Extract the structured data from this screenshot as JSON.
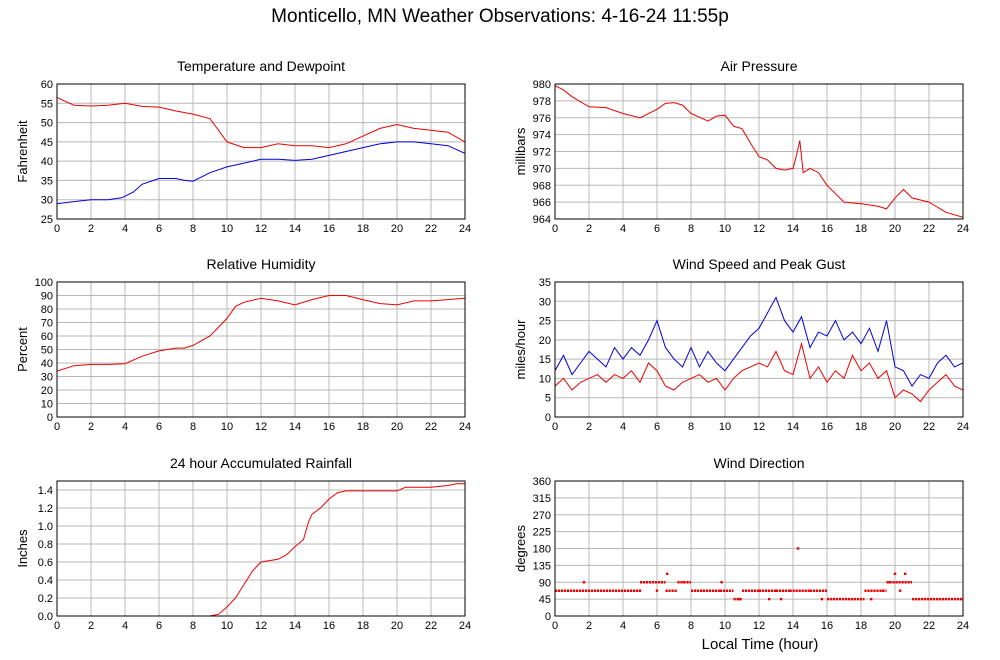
{
  "title": "Monticello, MN Weather Observations: 4-16-24 11:55p",
  "shared_xlabel": "Local Time (hour)",
  "chart_data": [
    {
      "id": "temp",
      "type": "line",
      "title": "Temperature and Dewpoint",
      "ylabel": "Fahrenheit",
      "xlim": [
        0,
        24
      ],
      "ylim": [
        25,
        60
      ],
      "yticks": [
        25,
        30,
        35,
        40,
        45,
        50,
        55,
        60
      ],
      "grid": true,
      "series": [
        {
          "color": "#ee0000",
          "x": [
            0,
            0.5,
            1,
            2,
            3,
            4,
            5,
            6,
            7,
            8,
            9,
            10,
            11,
            12,
            13,
            14,
            15,
            16,
            17,
            18,
            19,
            20,
            21,
            22,
            23,
            24
          ],
          "y": [
            56.5,
            55.5,
            54.5,
            54.3,
            54.5,
            55,
            54.2,
            54,
            53,
            52.2,
            51,
            45,
            43.5,
            43.5,
            44.5,
            44,
            44,
            43.5,
            44.5,
            46.5,
            48.5,
            49.5,
            48.5,
            48,
            47.5,
            45
          ]
        },
        {
          "color": "#0000dd",
          "x": [
            0,
            1,
            2,
            3,
            3.8,
            4.5,
            5,
            6,
            7,
            7.5,
            8,
            9,
            10,
            11,
            12,
            13,
            14,
            15,
            16,
            17,
            18,
            19,
            20,
            21,
            22,
            23,
            24
          ],
          "y": [
            29,
            29.5,
            30,
            30,
            30.5,
            32,
            34,
            35.5,
            35.5,
            35,
            34.8,
            37,
            38.5,
            39.5,
            40.5,
            40.5,
            40.2,
            40.5,
            41.5,
            42.5,
            43.5,
            44.5,
            45,
            45,
            44.5,
            44,
            42
          ]
        }
      ]
    },
    {
      "id": "pressure",
      "type": "line",
      "title": "Air Pressure",
      "ylabel": "millibars",
      "xlim": [
        0,
        24
      ],
      "ylim": [
        964,
        980
      ],
      "yticks": [
        964,
        966,
        968,
        970,
        972,
        974,
        976,
        978,
        980
      ],
      "grid": true,
      "series": [
        {
          "color": "#ee0000",
          "x": [
            0,
            0.5,
            1,
            2,
            3,
            4,
            5,
            6,
            6.5,
            7,
            7.5,
            8,
            9,
            9.5,
            10,
            10.5,
            11,
            11.5,
            12,
            12.5,
            13,
            13.5,
            14,
            14.2,
            14.4,
            14.6,
            15,
            15.5,
            16,
            17,
            18,
            19,
            19.5,
            20,
            20.5,
            21,
            22,
            23,
            24
          ],
          "y": [
            979.8,
            979.3,
            978.5,
            977.3,
            977.2,
            976.5,
            976,
            977,
            977.7,
            977.8,
            977.5,
            976.5,
            975.6,
            976.2,
            976.3,
            975,
            974.7,
            973,
            971.4,
            971,
            970,
            969.8,
            970,
            971.5,
            973.3,
            969.5,
            970,
            969.5,
            968,
            966,
            965.8,
            965.5,
            965.2,
            966.5,
            967.5,
            966.5,
            966,
            964.8,
            964.2
          ]
        }
      ]
    },
    {
      "id": "humidity",
      "type": "line",
      "title": "Relative Humidity",
      "ylabel": "Percent",
      "xlim": [
        0,
        24
      ],
      "ylim": [
        0,
        100
      ],
      "yticks": [
        0,
        10,
        20,
        30,
        40,
        50,
        60,
        70,
        80,
        90,
        100
      ],
      "grid": true,
      "series": [
        {
          "color": "#ee0000",
          "x": [
            0,
            1,
            2,
            3,
            4,
            5,
            6,
            7,
            7.5,
            8,
            9,
            10,
            10.5,
            11,
            12,
            13,
            14,
            15,
            16,
            17,
            18,
            19,
            20,
            21,
            22,
            23,
            24
          ],
          "y": [
            34,
            38,
            39,
            39,
            39.5,
            45,
            49,
            51,
            51,
            53,
            60,
            73,
            82,
            85,
            88,
            86,
            83,
            87,
            90,
            90,
            87,
            84,
            83,
            86,
            86,
            87,
            88
          ]
        }
      ]
    },
    {
      "id": "wind",
      "type": "line",
      "title": "Wind Speed and Peak Gust",
      "ylabel": "miles/hour",
      "xlim": [
        0,
        24
      ],
      "ylim": [
        0,
        35
      ],
      "yticks": [
        0,
        5,
        10,
        15,
        20,
        25,
        30,
        35
      ],
      "grid": true,
      "series": [
        {
          "color": "#0000dd",
          "x": [
            0,
            0.5,
            1,
            1.5,
            2,
            2.5,
            3,
            3.5,
            4,
            4.5,
            5,
            5.5,
            6,
            6.5,
            7,
            7.5,
            8,
            8.5,
            9,
            9.5,
            10,
            10.5,
            11,
            11.5,
            12,
            12.5,
            13,
            13.5,
            14,
            14.5,
            15,
            15.5,
            16,
            16.5,
            17,
            17.5,
            18,
            18.5,
            19,
            19.5,
            20,
            20.5,
            21,
            21.5,
            22,
            22.5,
            23,
            23.5,
            24
          ],
          "y": [
            12,
            16,
            11,
            14,
            17,
            15,
            13,
            18,
            15,
            18,
            16,
            20,
            25,
            18,
            15,
            13,
            18,
            13,
            17,
            14,
            12,
            15,
            18,
            21,
            23,
            27,
            31,
            25,
            22,
            26,
            18,
            22,
            21,
            25,
            20,
            22,
            19,
            23,
            17,
            25,
            13,
            12,
            8,
            11,
            10,
            14,
            16,
            13,
            14
          ]
        },
        {
          "color": "#ee0000",
          "x": [
            0,
            0.5,
            1,
            1.5,
            2,
            2.5,
            3,
            3.5,
            4,
            4.5,
            5,
            5.5,
            6,
            6.5,
            7,
            7.5,
            8,
            8.5,
            9,
            9.5,
            10,
            10.5,
            11,
            11.5,
            12,
            12.5,
            13,
            13.5,
            14,
            14.5,
            15,
            15.5,
            16,
            16.5,
            17,
            17.5,
            18,
            18.5,
            19,
            19.5,
            20,
            20.5,
            21,
            21.5,
            22,
            22.5,
            23,
            23.5,
            24
          ],
          "y": [
            8,
            10,
            7,
            9,
            10,
            11,
            9,
            11,
            10,
            12,
            9,
            14,
            12,
            8,
            7,
            9,
            10,
            11,
            9,
            10,
            7,
            10,
            12,
            13,
            14,
            13,
            17,
            12,
            11,
            19,
            10,
            13,
            9,
            12,
            10,
            16,
            12,
            14,
            10,
            12,
            5,
            7,
            6,
            4,
            7,
            9,
            11,
            8,
            7
          ]
        }
      ]
    },
    {
      "id": "rain",
      "type": "line",
      "title": "24 hour Accumulated Rainfall",
      "ylabel": "Inches",
      "xlim": [
        0,
        24
      ],
      "ylim": [
        0,
        1.5
      ],
      "yticks": [
        0,
        0.2,
        0.4,
        0.6,
        0.8,
        1.0,
        1.2,
        1.4
      ],
      "ytick_labels": [
        "0.0",
        "0.2",
        "0.4",
        "0.6",
        "0.8",
        "1.0",
        "1.2",
        "1.4"
      ],
      "grid": true,
      "series": [
        {
          "color": "#ee0000",
          "x": [
            0,
            9,
            9.5,
            10,
            10.5,
            11,
            11.5,
            12,
            13,
            13.5,
            14,
            14.5,
            14.8,
            15,
            15.5,
            16,
            16.5,
            17,
            18,
            19,
            20,
            20.5,
            21,
            22,
            23,
            23.5,
            24
          ],
          "y": [
            0,
            0,
            0.02,
            0.1,
            0.2,
            0.35,
            0.5,
            0.6,
            0.63,
            0.68,
            0.77,
            0.85,
            1.05,
            1.13,
            1.2,
            1.3,
            1.37,
            1.39,
            1.39,
            1.39,
            1.39,
            1.43,
            1.43,
            1.43,
            1.45,
            1.47,
            1.47
          ]
        }
      ]
    },
    {
      "id": "direction",
      "type": "scatter",
      "title": "Wind Direction",
      "ylabel": "degrees",
      "xlim": [
        0,
        24
      ],
      "ylim": [
        0,
        360
      ],
      "yticks": [
        0,
        45,
        90,
        135,
        180,
        225,
        270,
        315,
        360
      ],
      "grid": true,
      "series": [
        {
          "color": "#ee0000",
          "segments": [
            {
              "x0": 0,
              "x1": 5,
              "y": 67.5
            },
            {
              "x0": 5,
              "x1": 6.5,
              "y": 90
            },
            {
              "x0": 6.5,
              "x1": 7.2,
              "y": 67.5
            },
            {
              "x0": 7.2,
              "x1": 8,
              "y": 90
            },
            {
              "x0": 8,
              "x1": 9.7,
              "y": 67.5
            },
            {
              "x0": 9.7,
              "x1": 10.5,
              "y": 67.5
            },
            {
              "x0": 10.5,
              "x1": 11,
              "y": 45
            },
            {
              "x0": 11,
              "x1": 12,
              "y": 67.5
            },
            {
              "x0": 12,
              "x1": 13,
              "y": 67.5
            },
            {
              "x0": 13,
              "x1": 13.8,
              "y": 67.5
            },
            {
              "x0": 13.8,
              "x1": 15,
              "y": 67.5
            },
            {
              "x0": 15,
              "x1": 16,
              "y": 67.5
            },
            {
              "x0": 16,
              "x1": 18.2,
              "y": 45
            },
            {
              "x0": 18.2,
              "x1": 19.5,
              "y": 67.5
            },
            {
              "x0": 19.5,
              "x1": 21,
              "y": 90
            },
            {
              "x0": 21,
              "x1": 24,
              "y": 45
            }
          ],
          "points": [
            {
              "x": 1.7,
              "y": 90
            },
            {
              "x": 6.6,
              "y": 112.5
            },
            {
              "x": 7.6,
              "y": 90
            },
            {
              "x": 9.8,
              "y": 90
            },
            {
              "x": 10.8,
              "y": 45
            },
            {
              "x": 12.6,
              "y": 45
            },
            {
              "x": 14.3,
              "y": 180
            },
            {
              "x": 15.7,
              "y": 45
            },
            {
              "x": 18.6,
              "y": 45
            },
            {
              "x": 19.7,
              "y": 90
            },
            {
              "x": 20.0,
              "y": 112.5
            },
            {
              "x": 20.6,
              "y": 112.5
            },
            {
              "x": 19.3,
              "y": 67.5
            },
            {
              "x": 20.3,
              "y": 67.5
            },
            {
              "x": 13.3,
              "y": 45
            },
            {
              "x": 5.0,
              "y": 67.5
            },
            {
              "x": 6.0,
              "y": 67.5
            },
            {
              "x": 8.6,
              "y": 67.5
            }
          ]
        }
      ]
    }
  ],
  "xticks": [
    0,
    2,
    4,
    6,
    8,
    10,
    12,
    14,
    16,
    18,
    20,
    22,
    24
  ]
}
